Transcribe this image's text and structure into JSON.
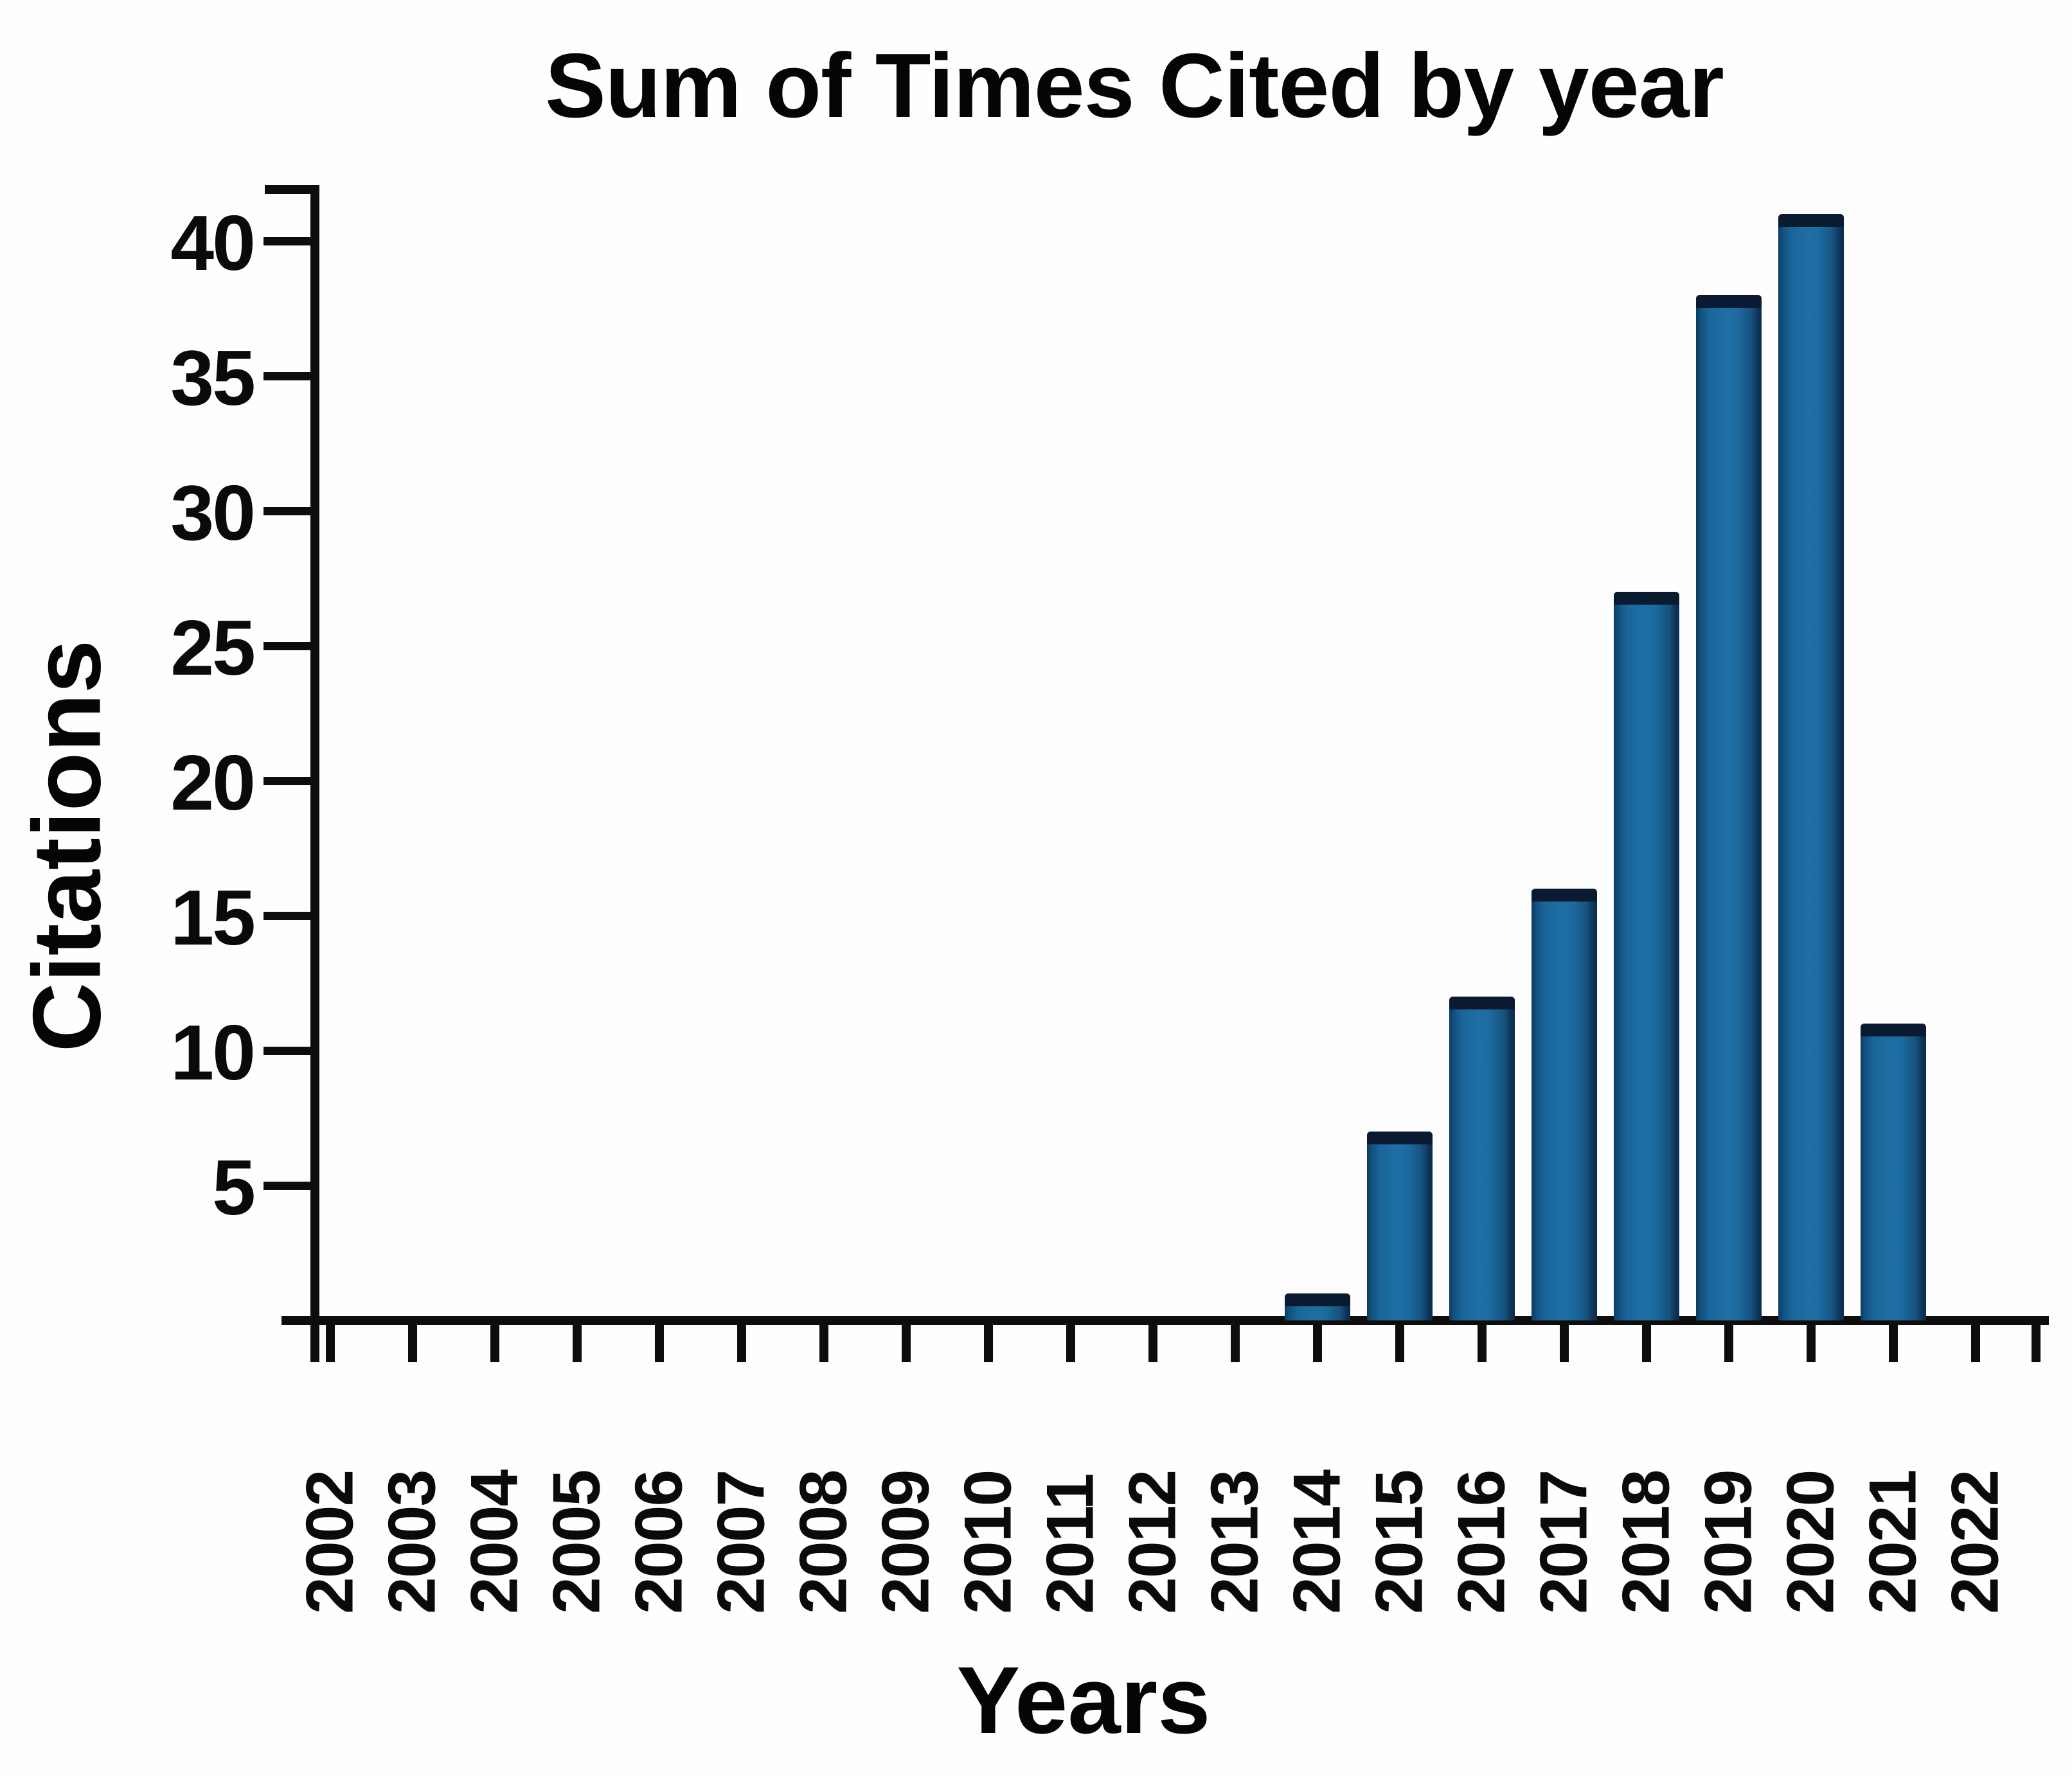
{
  "chart_data": {
    "type": "bar",
    "title": "Sum of Times Cited by year",
    "xlabel": "Years",
    "ylabel": "Citations",
    "categories": [
      "2002",
      "2003",
      "2004",
      "2005",
      "2006",
      "2007",
      "2008",
      "2009",
      "2010",
      "2011",
      "2012",
      "2013",
      "2014",
      "2015",
      "2016",
      "2017",
      "2018",
      "2019",
      "2020",
      "2021",
      "2022"
    ],
    "values": [
      0,
      0,
      0,
      0,
      0,
      0,
      0,
      0,
      0,
      0,
      0,
      0,
      1,
      7,
      12,
      16,
      27,
      38,
      41,
      11,
      0
    ],
    "yticks": [
      5,
      10,
      15,
      20,
      25,
      30,
      35,
      40
    ],
    "ylim": [
      0,
      42
    ],
    "grid": false,
    "legend": null,
    "colors": {
      "bar_center": "#1e6fa4",
      "bar_edge": "#0d3a5e",
      "bar_cap": "#0a1a30",
      "axis": "#0d0d0d",
      "text": "#0a0a0a",
      "background": "#fefefe"
    }
  }
}
